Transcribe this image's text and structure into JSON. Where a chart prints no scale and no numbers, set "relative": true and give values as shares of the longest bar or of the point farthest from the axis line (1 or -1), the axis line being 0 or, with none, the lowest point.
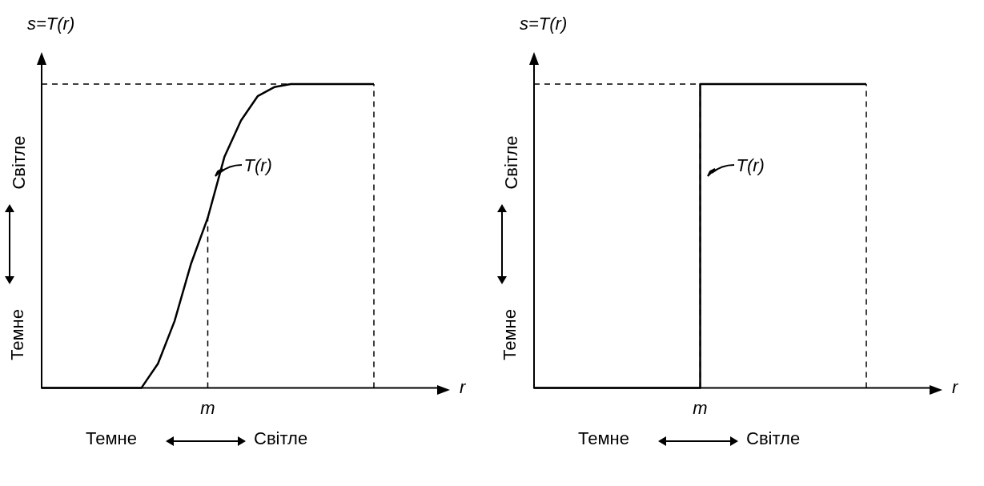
{
  "chart_data": [
    {
      "type": "line",
      "relative": true,
      "xlabel": "r",
      "ylabel": "s=T(r)",
      "categories": [
        null,
        null,
        null,
        null,
        null,
        null,
        null,
        null,
        null,
        null,
        null,
        null,
        null,
        null,
        null,
        null,
        null,
        null,
        null,
        null,
        null,
        null,
        null,
        null,
        null
      ],
      "series": [
        {
          "color": "#000000",
          "values": [
            0,
            0,
            0,
            0,
            0,
            0,
            0,
            0.08,
            0.22,
            0.41,
            0.56,
            0.76,
            0.88,
            0.96,
            0.99,
            1,
            1,
            1,
            1,
            1,
            1,
            null,
            null,
            null,
            null
          ]
        }
      ],
      "annotations": [
        "T(r)",
        "m",
        "Темне",
        "Світле",
        "Темне",
        "Світле"
      ],
      "legend": false,
      "grid": false
    },
    {
      "type": "step",
      "relative": true,
      "xlabel": "r",
      "ylabel": "s=T(r)",
      "categories": [
        null,
        null,
        null,
        null,
        null,
        null,
        null,
        null,
        null,
        null,
        null,
        null,
        null,
        null,
        null,
        null,
        null,
        null,
        null,
        null,
        null,
        null,
        null,
        null,
        null
      ],
      "series": [
        {
          "color": "#000000",
          "values": [
            0,
            0,
            0,
            0,
            0,
            0,
            0,
            0,
            0,
            0,
            1,
            1,
            1,
            1,
            1,
            1,
            1,
            1,
            1,
            1,
            1,
            null,
            null,
            null,
            null
          ]
        }
      ],
      "annotations": [
        "T(r)",
        "m",
        "Темне",
        "Світле",
        "Темне",
        "Світле"
      ],
      "legend": false,
      "grid": false
    }
  ]
}
